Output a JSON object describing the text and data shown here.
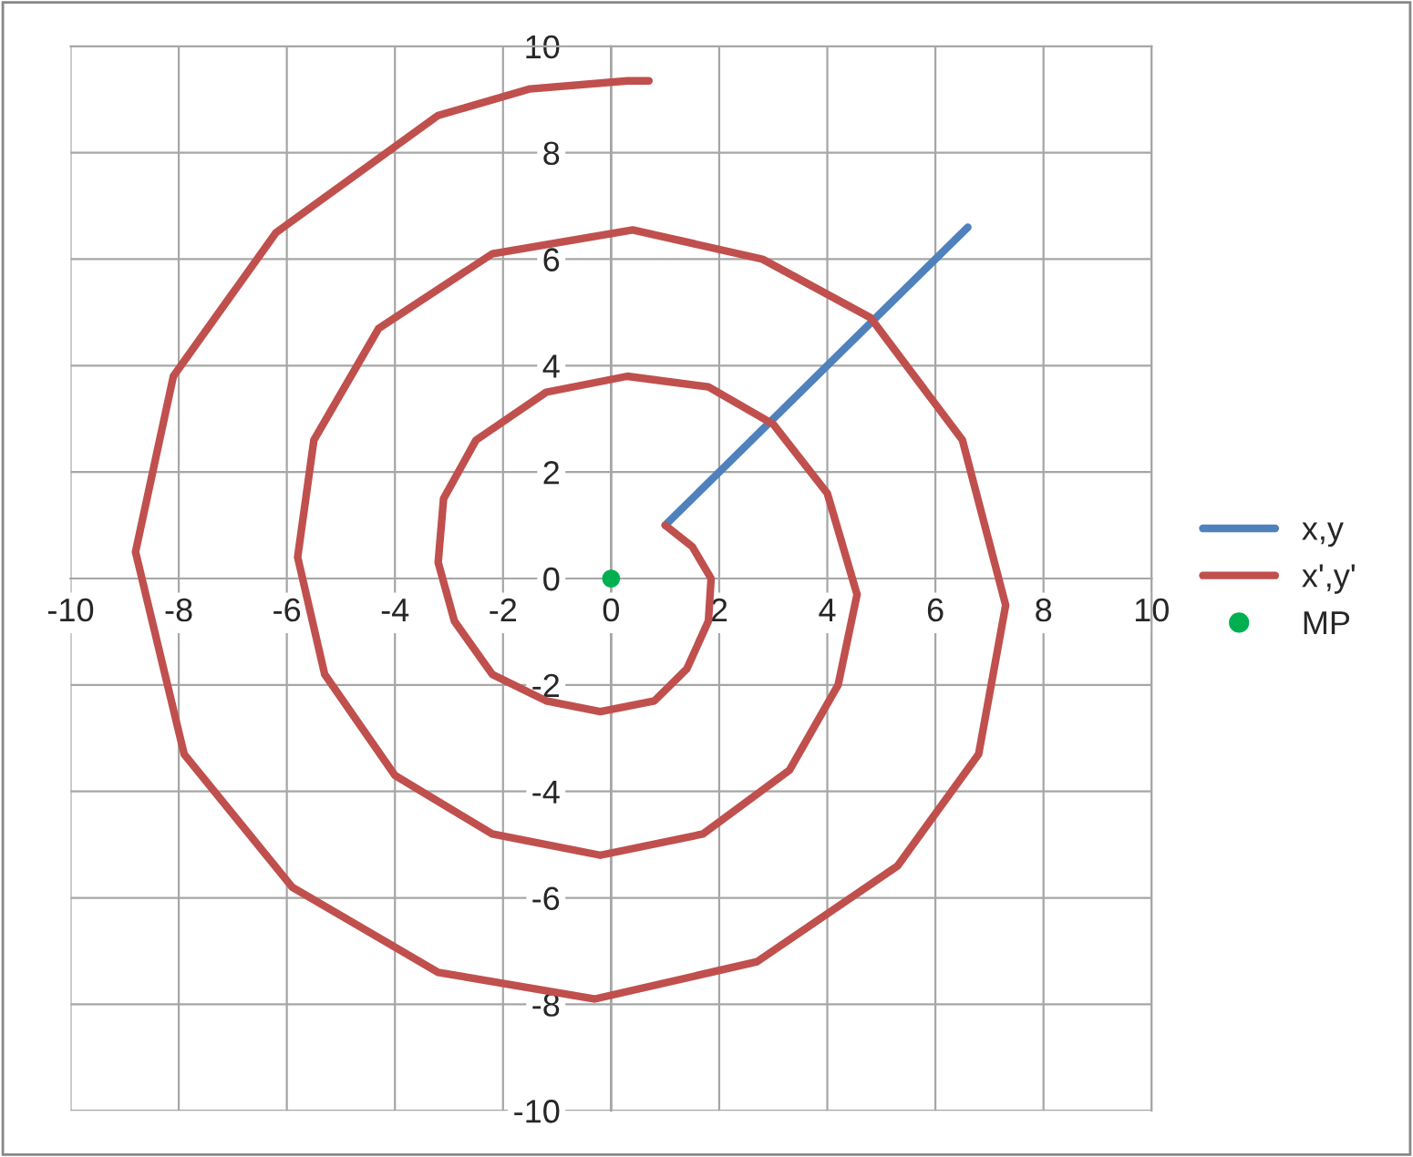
{
  "chart_data": {
    "type": "line",
    "xlim": [
      -10,
      10
    ],
    "ylim": [
      -10,
      10
    ],
    "xticks": [
      -10,
      -8,
      -6,
      -4,
      -2,
      0,
      2,
      4,
      6,
      8,
      10
    ],
    "yticks": [
      -10,
      -8,
      -6,
      -4,
      -2,
      0,
      2,
      4,
      6,
      8,
      10
    ],
    "grid": true,
    "legend": "right",
    "line_style": "solid",
    "series": [
      {
        "name": "x,y",
        "color": "#4f81bd",
        "marker": "none",
        "x": [
          1,
          6.6
        ],
        "values": [
          1,
          6.6
        ]
      },
      {
        "name": "x',y'",
        "color": "#c0504d",
        "marker": "none",
        "x": [
          1,
          1.5,
          1.85,
          1.8,
          1.4,
          0.8,
          -0.2,
          -1.2,
          -2.2,
          -2.9,
          -3.2,
          -3.1,
          -2.5,
          -1.2,
          0.3,
          1.8,
          3.0,
          4.0,
          4.55,
          4.2,
          3.3,
          1.7,
          -0.2,
          -2.2,
          -4.0,
          -5.3,
          -5.8,
          -5.5,
          -4.3,
          -2.2,
          0.4,
          2.8,
          4.8,
          6.5,
          7.3,
          6.8,
          5.3,
          2.7,
          -0.3,
          -3.2,
          -5.9,
          -7.9,
          -8.8,
          -8.1,
          -6.2,
          -3.2,
          -1.5,
          0.3,
          0.7
        ],
        "values": [
          1,
          0.6,
          0,
          -0.8,
          -1.7,
          -2.3,
          -2.5,
          -2.3,
          -1.8,
          -0.8,
          0.3,
          1.5,
          2.6,
          3.5,
          3.8,
          3.6,
          2.9,
          1.6,
          -0.3,
          -2.0,
          -3.6,
          -4.8,
          -5.2,
          -4.8,
          -3.7,
          -1.8,
          0.4,
          2.6,
          4.7,
          6.1,
          6.55,
          6.0,
          4.9,
          2.6,
          -0.5,
          -3.3,
          -5.4,
          -7.2,
          -7.9,
          -7.4,
          -5.8,
          -3.3,
          0.5,
          3.8,
          6.5,
          8.7,
          9.2,
          9.35,
          9.35
        ]
      },
      {
        "name": "MP",
        "type": "scatter",
        "color": "#00b050",
        "marker": "circle",
        "x": [
          0
        ],
        "values": [
          0
        ]
      }
    ]
  }
}
